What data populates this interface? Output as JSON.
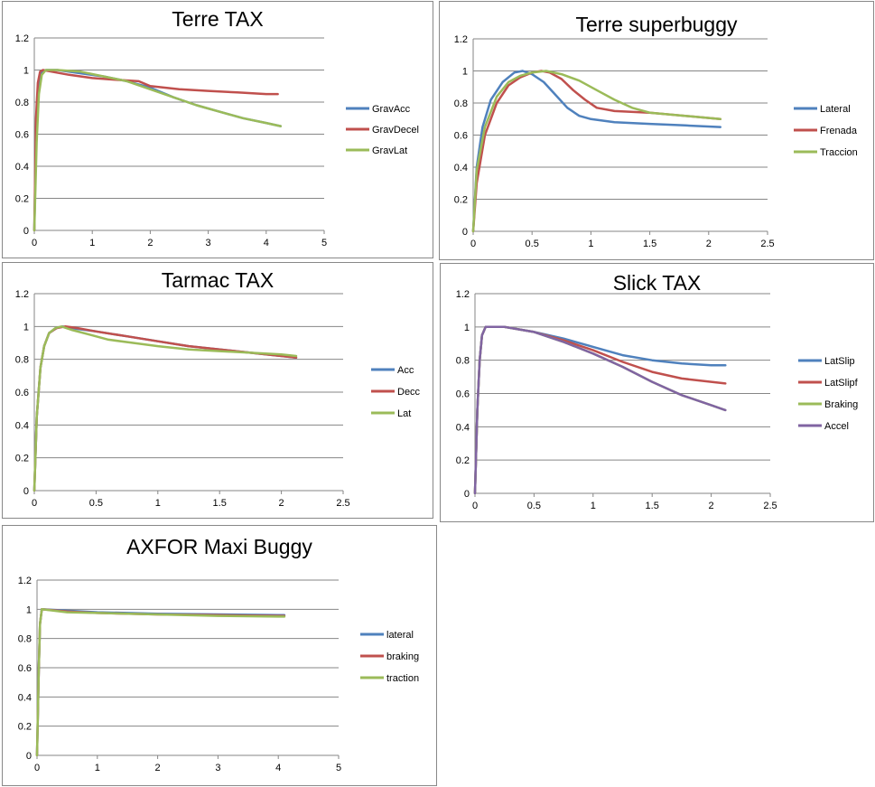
{
  "chart_data": [
    {
      "type": "line",
      "title": "Terre TAX",
      "xlim": [
        0,
        5
      ],
      "ylim": [
        0,
        1.2
      ],
      "xticks": [
        "0",
        "1",
        "2",
        "3",
        "4",
        "5"
      ],
      "yticks": [
        "0",
        "0.2",
        "0.4",
        "0.6",
        "0.8",
        "1",
        "1.2"
      ],
      "grid": "horizontal",
      "legend": "right",
      "series": [
        {
          "name": "GravAcc",
          "color": "#4F81BD",
          "points": [
            [
              0,
              0
            ],
            [
              0.03,
              0.6
            ],
            [
              0.07,
              0.9
            ],
            [
              0.12,
              0.98
            ],
            [
              0.2,
              1.0
            ],
            [
              0.4,
              1.0
            ],
            [
              0.8,
              0.98
            ],
            [
              1.2,
              0.96
            ],
            [
              1.6,
              0.93
            ],
            [
              2.0,
              0.89
            ],
            [
              2.4,
              0.83
            ],
            [
              2.8,
              0.78
            ],
            [
              3.2,
              0.74
            ],
            [
              3.6,
              0.7
            ],
            [
              4.0,
              0.67
            ],
            [
              4.25,
              0.65
            ]
          ]
        },
        {
          "name": "GravDecel",
          "color": "#C0504D",
          "points": [
            [
              0,
              0
            ],
            [
              0.03,
              0.7
            ],
            [
              0.06,
              0.92
            ],
            [
              0.1,
              0.99
            ],
            [
              0.15,
              1.0
            ],
            [
              0.3,
              0.99
            ],
            [
              0.6,
              0.97
            ],
            [
              1.0,
              0.95
            ],
            [
              1.4,
              0.94
            ],
            [
              1.8,
              0.93
            ],
            [
              2.0,
              0.9
            ],
            [
              2.5,
              0.88
            ],
            [
              3.0,
              0.87
            ],
            [
              3.5,
              0.86
            ],
            [
              4.0,
              0.85
            ],
            [
              4.2,
              0.85
            ]
          ]
        },
        {
          "name": "GravLat",
          "color": "#9BBB59",
          "points": [
            [
              0,
              0
            ],
            [
              0.04,
              0.55
            ],
            [
              0.08,
              0.85
            ],
            [
              0.13,
              0.97
            ],
            [
              0.2,
              1.0
            ],
            [
              0.4,
              1.0
            ],
            [
              0.8,
              0.99
            ],
            [
              1.2,
              0.96
            ],
            [
              1.6,
              0.93
            ],
            [
              2.0,
              0.88
            ],
            [
              2.4,
              0.83
            ],
            [
              2.8,
              0.78
            ],
            [
              3.2,
              0.74
            ],
            [
              3.6,
              0.7
            ],
            [
              4.0,
              0.67
            ],
            [
              4.25,
              0.65
            ]
          ]
        }
      ]
    },
    {
      "type": "line",
      "title": "Terre superbuggy",
      "xlim": [
        0,
        2.5
      ],
      "ylim": [
        0,
        1.2
      ],
      "xticks": [
        "0",
        "0.5",
        "1",
        "1.5",
        "2",
        "2.5"
      ],
      "yticks": [
        "0",
        "0.2",
        "0.4",
        "0.6",
        "0.8",
        "1",
        "1.2"
      ],
      "grid": "horizontal",
      "legend": "right",
      "series": [
        {
          "name": "Lateral",
          "color": "#4F81BD",
          "points": [
            [
              0,
              0
            ],
            [
              0.03,
              0.4
            ],
            [
              0.08,
              0.65
            ],
            [
              0.15,
              0.82
            ],
            [
              0.25,
              0.93
            ],
            [
              0.35,
              0.99
            ],
            [
              0.42,
              1.0
            ],
            [
              0.5,
              0.98
            ],
            [
              0.6,
              0.93
            ],
            [
              0.7,
              0.85
            ],
            [
              0.8,
              0.77
            ],
            [
              0.9,
              0.72
            ],
            [
              1.0,
              0.7
            ],
            [
              1.2,
              0.68
            ],
            [
              1.5,
              0.67
            ],
            [
              1.8,
              0.66
            ],
            [
              2.1,
              0.65
            ]
          ]
        },
        {
          "name": "Frenada",
          "color": "#C0504D",
          "points": [
            [
              0,
              0
            ],
            [
              0.03,
              0.3
            ],
            [
              0.1,
              0.6
            ],
            [
              0.2,
              0.8
            ],
            [
              0.3,
              0.91
            ],
            [
              0.4,
              0.96
            ],
            [
              0.5,
              0.99
            ],
            [
              0.58,
              1.0
            ],
            [
              0.65,
              0.99
            ],
            [
              0.75,
              0.95
            ],
            [
              0.85,
              0.88
            ],
            [
              0.95,
              0.82
            ],
            [
              1.05,
              0.77
            ],
            [
              1.2,
              0.75
            ],
            [
              1.5,
              0.74
            ],
            [
              1.8,
              0.72
            ],
            [
              2.1,
              0.7
            ]
          ]
        },
        {
          "name": "Traccion",
          "color": "#9BBB59",
          "points": [
            [
              0,
              0
            ],
            [
              0.03,
              0.38
            ],
            [
              0.1,
              0.65
            ],
            [
              0.2,
              0.84
            ],
            [
              0.3,
              0.93
            ],
            [
              0.4,
              0.97
            ],
            [
              0.5,
              0.99
            ],
            [
              0.62,
              1.0
            ],
            [
              0.75,
              0.98
            ],
            [
              0.9,
              0.94
            ],
            [
              1.05,
              0.88
            ],
            [
              1.2,
              0.82
            ],
            [
              1.35,
              0.77
            ],
            [
              1.5,
              0.74
            ],
            [
              1.8,
              0.72
            ],
            [
              2.1,
              0.7
            ]
          ]
        }
      ]
    },
    {
      "type": "line",
      "title": "Tarmac TAX",
      "xlim": [
        0,
        2.5
      ],
      "ylim": [
        0,
        1.2
      ],
      "xticks": [
        "0",
        "0.5",
        "1",
        "1.5",
        "2",
        "2.5"
      ],
      "yticks": [
        "0",
        "0.2",
        "0.4",
        "0.6",
        "0.8",
        "1",
        "1.2"
      ],
      "grid": "horizontal",
      "legend": "right",
      "series": [
        {
          "name": "Acc",
          "color": "#4F81BD",
          "points": [
            [
              0,
              0
            ],
            [
              0.02,
              0.45
            ],
            [
              0.05,
              0.75
            ],
            [
              0.08,
              0.88
            ],
            [
              0.12,
              0.96
            ],
            [
              0.18,
              0.99
            ],
            [
              0.23,
              1.0
            ],
            [
              0.3,
              0.99
            ],
            [
              0.5,
              0.97
            ],
            [
              0.75,
              0.94
            ],
            [
              1.0,
              0.91
            ],
            [
              1.25,
              0.88
            ],
            [
              1.5,
              0.86
            ],
            [
              1.75,
              0.84
            ],
            [
              2.0,
              0.82
            ],
            [
              2.12,
              0.81
            ]
          ]
        },
        {
          "name": "Decc",
          "color": "#C0504D",
          "points": [
            [
              0,
              0
            ],
            [
              0.02,
              0.45
            ],
            [
              0.05,
              0.75
            ],
            [
              0.08,
              0.88
            ],
            [
              0.12,
              0.96
            ],
            [
              0.18,
              0.99
            ],
            [
              0.25,
              1.0
            ],
            [
              0.35,
              0.99
            ],
            [
              0.5,
              0.97
            ],
            [
              0.75,
              0.94
            ],
            [
              1.0,
              0.91
            ],
            [
              1.25,
              0.88
            ],
            [
              1.5,
              0.86
            ],
            [
              1.75,
              0.84
            ],
            [
              2.0,
              0.82
            ],
            [
              2.12,
              0.81
            ]
          ]
        },
        {
          "name": "Lat",
          "color": "#9BBB59",
          "points": [
            [
              0,
              0
            ],
            [
              0.02,
              0.45
            ],
            [
              0.05,
              0.75
            ],
            [
              0.08,
              0.88
            ],
            [
              0.12,
              0.96
            ],
            [
              0.17,
              0.99
            ],
            [
              0.22,
              1.0
            ],
            [
              0.3,
              0.98
            ],
            [
              0.45,
              0.95
            ],
            [
              0.6,
              0.92
            ],
            [
              0.8,
              0.9
            ],
            [
              1.0,
              0.88
            ],
            [
              1.25,
              0.86
            ],
            [
              1.5,
              0.85
            ],
            [
              1.75,
              0.84
            ],
            [
              2.0,
              0.83
            ],
            [
              2.12,
              0.82
            ]
          ]
        }
      ]
    },
    {
      "type": "line",
      "title": "Slick TAX",
      "xlim": [
        0,
        2.5
      ],
      "ylim": [
        0,
        1.2
      ],
      "xticks": [
        "0",
        "0.5",
        "1",
        "1.5",
        "2",
        "2.5"
      ],
      "yticks": [
        "0",
        "0.2",
        "0.4",
        "0.6",
        "0.8",
        "1",
        "1.2"
      ],
      "grid": "horizontal",
      "legend": "right",
      "series": [
        {
          "name": "LatSlip",
          "color": "#4F81BD",
          "points": [
            [
              0,
              0
            ],
            [
              0.02,
              0.5
            ],
            [
              0.04,
              0.8
            ],
            [
              0.06,
              0.95
            ],
            [
              0.09,
              1.0
            ],
            [
              0.25,
              1.0
            ],
            [
              0.5,
              0.97
            ],
            [
              0.75,
              0.93
            ],
            [
              1.0,
              0.88
            ],
            [
              1.25,
              0.83
            ],
            [
              1.5,
              0.8
            ],
            [
              1.75,
              0.78
            ],
            [
              2.0,
              0.77
            ],
            [
              2.12,
              0.77
            ]
          ]
        },
        {
          "name": "LatSlipf",
          "color": "#C0504D",
          "points": [
            [
              0,
              0
            ],
            [
              0.02,
              0.5
            ],
            [
              0.04,
              0.8
            ],
            [
              0.06,
              0.95
            ],
            [
              0.09,
              1.0
            ],
            [
              0.25,
              1.0
            ],
            [
              0.5,
              0.97
            ],
            [
              0.75,
              0.92
            ],
            [
              1.0,
              0.86
            ],
            [
              1.25,
              0.79
            ],
            [
              1.5,
              0.73
            ],
            [
              1.75,
              0.69
            ],
            [
              2.0,
              0.67
            ],
            [
              2.12,
              0.66
            ]
          ]
        },
        {
          "name": "Braking",
          "color": "#9BBB59",
          "points": [
            [
              0,
              0
            ],
            [
              0.02,
              0.5
            ],
            [
              0.04,
              0.8
            ],
            [
              0.06,
              0.95
            ],
            [
              0.09,
              1.0
            ],
            [
              0.25,
              1.0
            ],
            [
              0.5,
              0.97
            ],
            [
              0.75,
              0.91
            ],
            [
              1.0,
              0.84
            ],
            [
              1.25,
              0.76
            ],
            [
              1.5,
              0.67
            ],
            [
              1.75,
              0.59
            ],
            [
              2.0,
              0.53
            ],
            [
              2.12,
              0.5
            ]
          ]
        },
        {
          "name": "Accel",
          "color": "#8064A2",
          "points": [
            [
              0,
              0
            ],
            [
              0.02,
              0.5
            ],
            [
              0.04,
              0.8
            ],
            [
              0.06,
              0.95
            ],
            [
              0.09,
              1.0
            ],
            [
              0.25,
              1.0
            ],
            [
              0.5,
              0.97
            ],
            [
              0.75,
              0.91
            ],
            [
              1.0,
              0.84
            ],
            [
              1.25,
              0.76
            ],
            [
              1.5,
              0.67
            ],
            [
              1.75,
              0.59
            ],
            [
              2.0,
              0.53
            ],
            [
              2.12,
              0.5
            ]
          ]
        }
      ]
    },
    {
      "type": "line",
      "title": "AXFOR Maxi Buggy",
      "xlim": [
        0,
        5
      ],
      "ylim": [
        0,
        1.2
      ],
      "xticks": [
        "0",
        "1",
        "2",
        "3",
        "4",
        "5"
      ],
      "yticks": [
        "0",
        "0.2",
        "0.4",
        "0.6",
        "0.8",
        "1",
        "1.2"
      ],
      "grid": "horizontal",
      "legend": "right",
      "series": [
        {
          "name": "lateral",
          "color": "#4F81BD",
          "points": [
            [
              0,
              0
            ],
            [
              0.03,
              0.6
            ],
            [
              0.05,
              0.9
            ],
            [
              0.08,
              1.0
            ],
            [
              0.5,
              0.99
            ],
            [
              1.0,
              0.98
            ],
            [
              2.0,
              0.97
            ],
            [
              3.0,
              0.965
            ],
            [
              4.0,
              0.96
            ],
            [
              4.1,
              0.96
            ]
          ]
        },
        {
          "name": "braking",
          "color": "#C0504D",
          "points": [
            [
              0,
              0
            ],
            [
              0.03,
              0.6
            ],
            [
              0.05,
              0.9
            ],
            [
              0.08,
              1.0
            ],
            [
              0.5,
              0.985
            ],
            [
              1.0,
              0.975
            ],
            [
              2.0,
              0.965
            ],
            [
              3.0,
              0.96
            ],
            [
              4.0,
              0.955
            ],
            [
              4.1,
              0.955
            ]
          ]
        },
        {
          "name": "traction",
          "color": "#9BBB59",
          "points": [
            [
              0,
              0
            ],
            [
              0.03,
              0.6
            ],
            [
              0.05,
              0.9
            ],
            [
              0.08,
              1.0
            ],
            [
              0.5,
              0.98
            ],
            [
              1.0,
              0.975
            ],
            [
              2.0,
              0.965
            ],
            [
              3.0,
              0.955
            ],
            [
              4.0,
              0.95
            ],
            [
              4.1,
              0.95
            ]
          ]
        }
      ]
    }
  ]
}
